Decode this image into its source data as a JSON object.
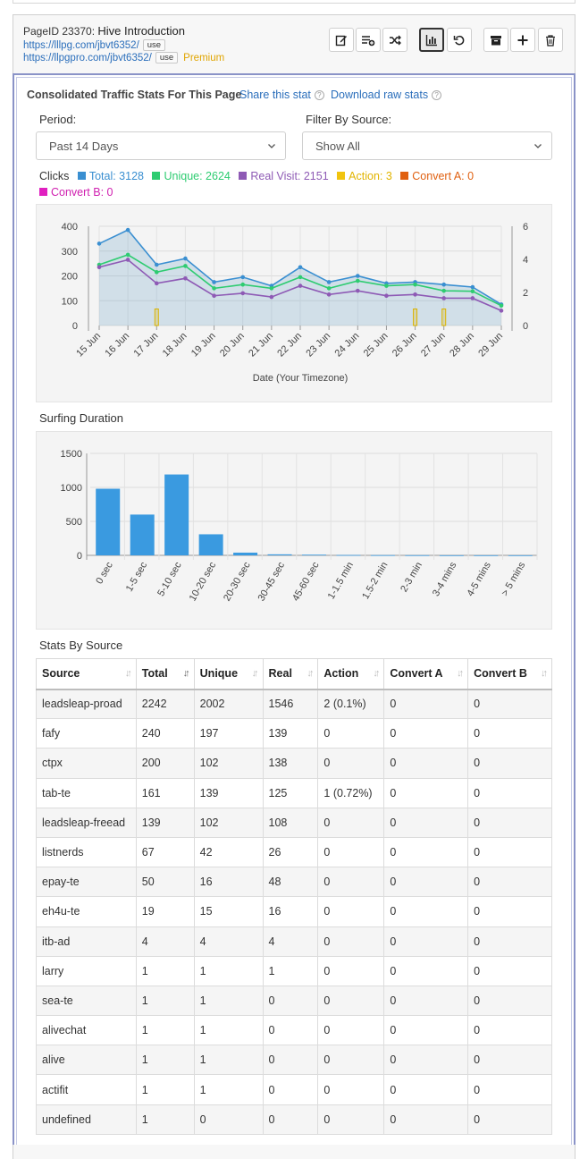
{
  "header": {
    "page_id": "PageID 23370:",
    "title": "Hive Introduction",
    "url1": "https://lllpg.com/jbvt6352/",
    "url2": "https://llpgpro.com/jbvt6352/",
    "use_label": "use",
    "premium_label": "Premium"
  },
  "toolbar": [
    {
      "name": "edit-icon"
    },
    {
      "name": "add-list-icon"
    },
    {
      "name": "shuffle-icon"
    },
    {
      "name": "stats-chart-icon"
    },
    {
      "name": "reset-icon"
    },
    {
      "name": "archive-icon"
    },
    {
      "name": "plus-icon"
    },
    {
      "name": "trash-icon"
    }
  ],
  "stats": {
    "title": "Consolidated Traffic Stats For This Page",
    "share_label": "Share this stat",
    "download_label": "Download raw stats",
    "period_label": "Period:",
    "period_value": "Past 14 Days",
    "filter_label": "Filter By Source:",
    "filter_value": "Show All",
    "clicks_label": "Clicks"
  },
  "legend": [
    {
      "label": "Total: 3128",
      "color": "#3a8fd1",
      "text_color": "#3a8fd1"
    },
    {
      "label": "Unique: 2624",
      "color": "#2ecc71",
      "text_color": "#2ecc71"
    },
    {
      "label": "Real Visit: 2151",
      "color": "#8e5ab5",
      "text_color": "#8e5ab5"
    },
    {
      "label": "Action: 3",
      "color": "#f1c40f",
      "text_color": "#e2b400"
    },
    {
      "label": "Convert A: 0",
      "color": "#e06010",
      "text_color": "#e06010"
    },
    {
      "label": "Convert B: 0",
      "color": "#e020c0",
      "text_color": "#d020b0"
    }
  ],
  "chart_data": [
    {
      "type": "line",
      "categories": [
        "15 Jun",
        "16 Jun",
        "17 Jun",
        "18 Jun",
        "19 Jun",
        "20 Jun",
        "21 Jun",
        "22 Jun",
        "23 Jun",
        "24 Jun",
        "25 Jun",
        "26 Jun",
        "27 Jun",
        "28 Jun",
        "29 Jun"
      ],
      "xlabel": "Date (Your Timezone)",
      "ylim": [
        0,
        400
      ],
      "y_ticks": [
        "400",
        "300",
        "200",
        "100",
        "0"
      ],
      "y2lim": [
        0,
        6
      ],
      "y2_ticks": [
        "6",
        "4",
        "2",
        "0"
      ],
      "series": [
        {
          "name": "Total",
          "color": "#3a8fd1",
          "values": [
            330,
            385,
            245,
            270,
            175,
            195,
            160,
            235,
            175,
            200,
            170,
            175,
            165,
            155,
            85
          ]
        },
        {
          "name": "Unique",
          "color": "#2ecc71",
          "values": [
            245,
            285,
            215,
            240,
            150,
            165,
            150,
            195,
            150,
            180,
            160,
            165,
            140,
            138,
            80
          ]
        },
        {
          "name": "Real Visit",
          "color": "#8e5ab5",
          "values": [
            235,
            265,
            170,
            190,
            120,
            130,
            115,
            160,
            125,
            140,
            120,
            125,
            110,
            110,
            60
          ]
        },
        {
          "name": "Action",
          "color": "#f1c40f",
          "axis": "right",
          "values": [
            0,
            0,
            1,
            0,
            0,
            0,
            0,
            0,
            0,
            0,
            0,
            1,
            1,
            0,
            0
          ]
        }
      ]
    },
    {
      "type": "bar",
      "title": "Surfing Duration",
      "categories": [
        "0 sec",
        "1-5 sec",
        "5-10 sec",
        "10-20 sec",
        "20-30 sec",
        "30-45 sec",
        "45-60 sec",
        "1-1.5 min",
        "1.5-2 min",
        "2-3 min",
        "3-4 mins",
        "4-5 mins",
        "> 5 mins"
      ],
      "values": [
        980,
        600,
        1190,
        310,
        40,
        15,
        10,
        5,
        3,
        2,
        1,
        1,
        1
      ],
      "ylim": [
        0,
        1500
      ],
      "y_ticks": [
        "1500",
        "1000",
        "500",
        "0"
      ],
      "color": "#3a9ae0"
    }
  ],
  "source_table": {
    "title": "Stats By Source",
    "columns": [
      "Source",
      "Total",
      "Unique",
      "Real",
      "Action",
      "Convert A",
      "Convert B"
    ],
    "rows": [
      [
        "leadsleap-proad",
        "2242",
        "2002",
        "1546",
        "2 (0.1%)",
        "0",
        "0"
      ],
      [
        "fafy",
        "240",
        "197",
        "139",
        "0",
        "0",
        "0"
      ],
      [
        "ctpx",
        "200",
        "102",
        "138",
        "0",
        "0",
        "0"
      ],
      [
        "tab-te",
        "161",
        "139",
        "125",
        "1 (0.72%)",
        "0",
        "0"
      ],
      [
        "leadsleap-freead",
        "139",
        "102",
        "108",
        "0",
        "0",
        "0"
      ],
      [
        "listnerds",
        "67",
        "42",
        "26",
        "0",
        "0",
        "0"
      ],
      [
        "epay-te",
        "50",
        "16",
        "48",
        "0",
        "0",
        "0"
      ],
      [
        "eh4u-te",
        "19",
        "15",
        "16",
        "0",
        "0",
        "0"
      ],
      [
        "itb-ad",
        "4",
        "4",
        "4",
        "0",
        "0",
        "0"
      ],
      [
        "larry",
        "1",
        "1",
        "1",
        "0",
        "0",
        "0"
      ],
      [
        "sea-te",
        "1",
        "1",
        "0",
        "0",
        "0",
        "0"
      ],
      [
        "alivechat",
        "1",
        "1",
        "0",
        "0",
        "0",
        "0"
      ],
      [
        "alive",
        "1",
        "1",
        "0",
        "0",
        "0",
        "0"
      ],
      [
        "actifit",
        "1",
        "1",
        "0",
        "0",
        "0",
        "0"
      ],
      [
        "undefined",
        "1",
        "0",
        "0",
        "0",
        "0",
        "0"
      ]
    ]
  }
}
